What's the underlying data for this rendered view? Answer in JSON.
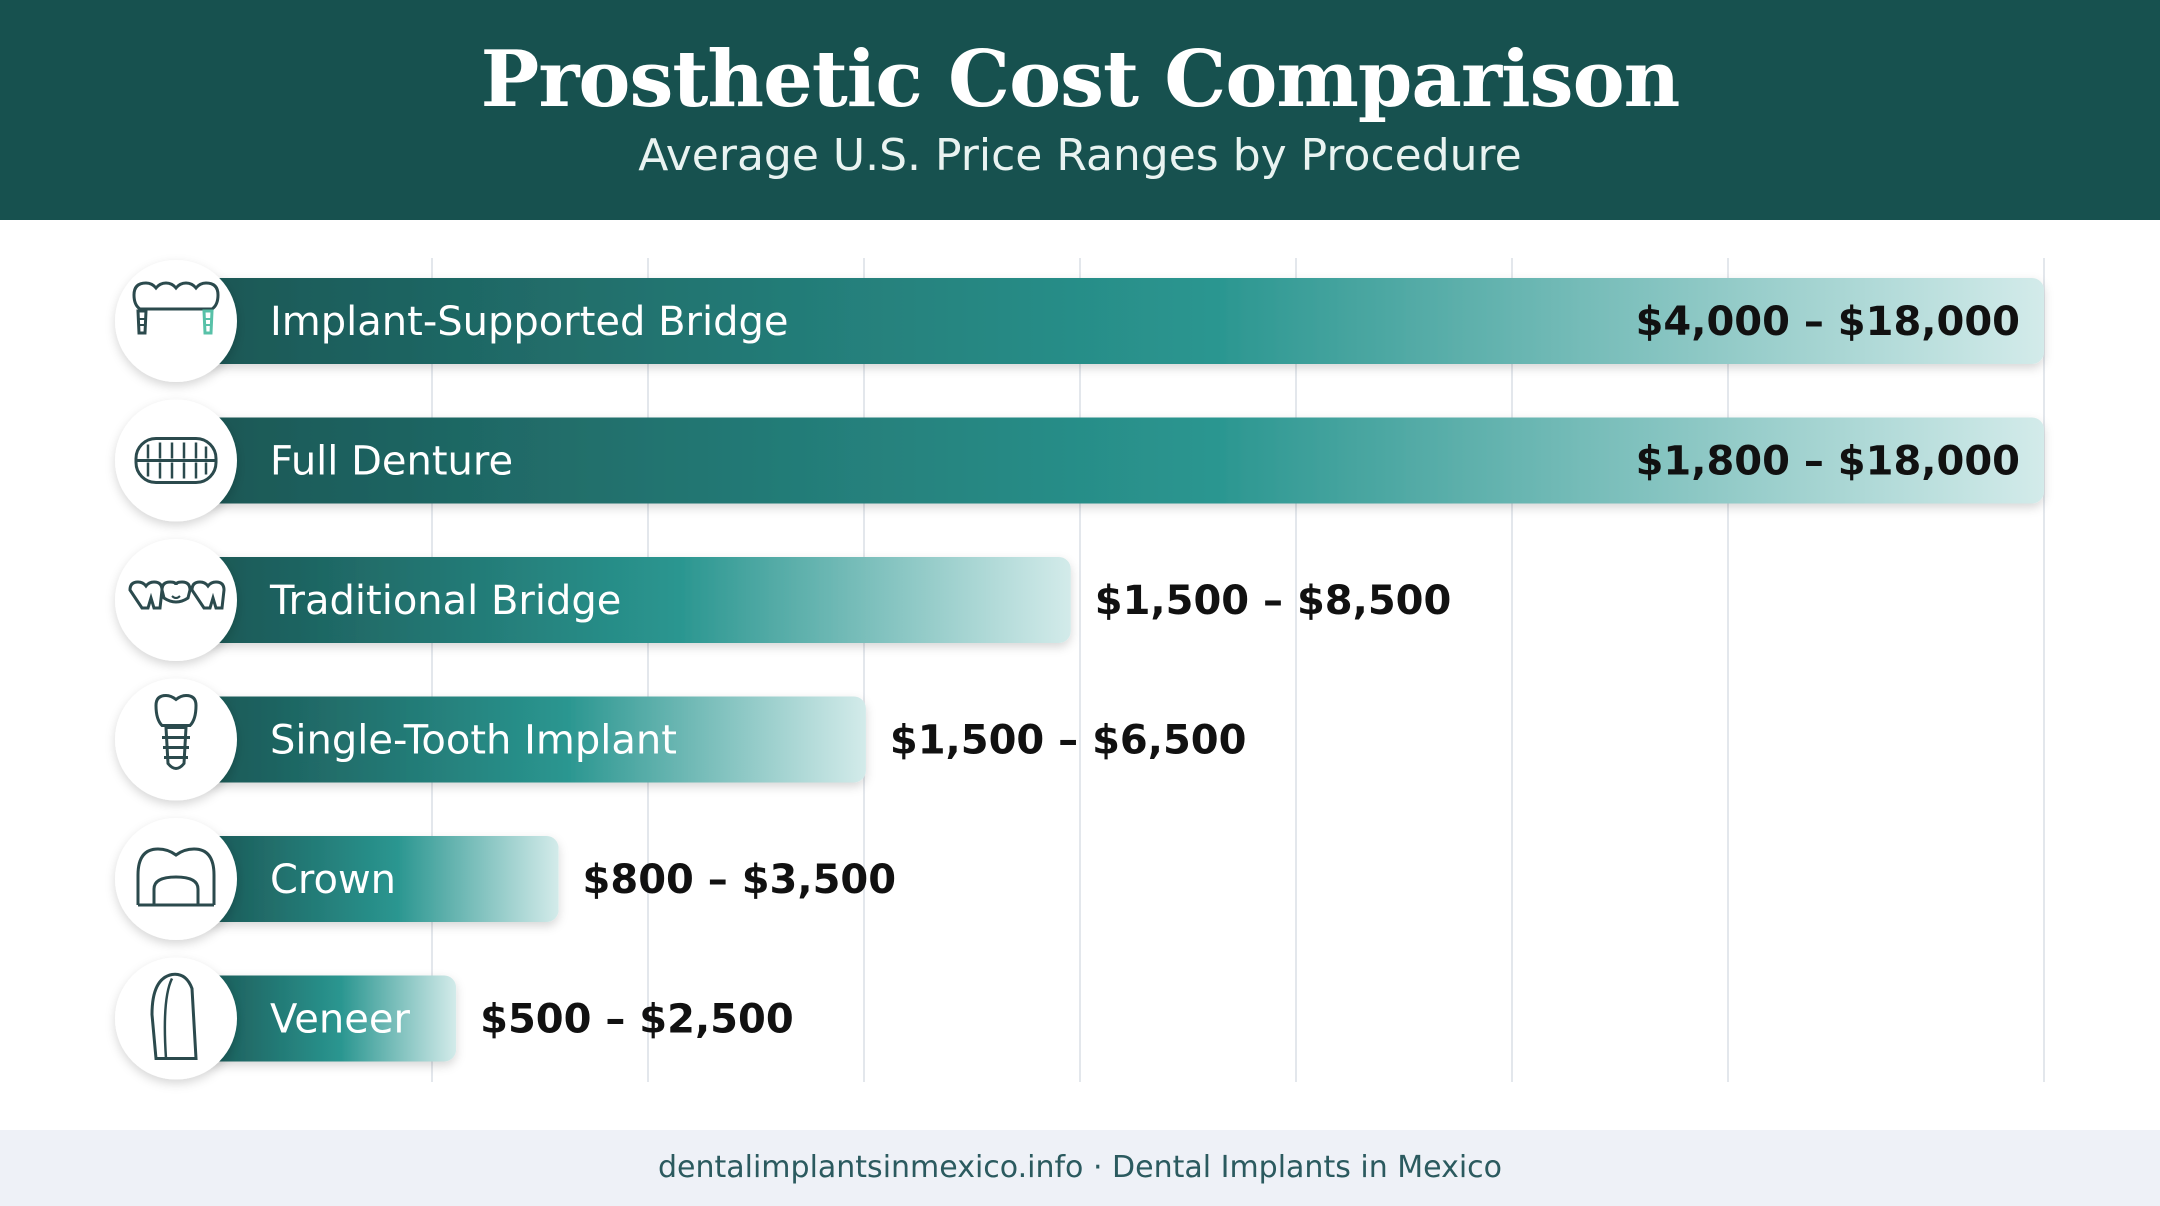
{
  "header": {
    "title": "Prosthetic Cost Comparison",
    "subtitle": "Average U.S. Price Ranges by Procedure"
  },
  "chart_data": {
    "type": "bar",
    "orientation": "horizontal",
    "title": "Prosthetic Cost Comparison",
    "subtitle": "Average U.S. Price Ranges by Procedure",
    "categories": [
      "Implant-Supported Bridge",
      "Full Denture",
      "Traditional Bridge",
      "Single-Tooth Implant",
      "Crown",
      "Veneer"
    ],
    "range_labels": [
      "$4,000 – $18,000",
      "$1,800 – $18,000",
      "$1,500 – $8,500",
      "$1,500 – $6,500",
      "$800 – $3,500",
      "$500 – $2,500"
    ],
    "low_values": [
      4000,
      1800,
      1500,
      1500,
      800,
      500
    ],
    "high_values": [
      18000,
      18000,
      8500,
      6500,
      3500,
      2500
    ],
    "icons": [
      "implant-bridge-icon",
      "denture-icon",
      "bridge-icon",
      "implant-icon",
      "crown-icon",
      "veneer-icon"
    ],
    "xlim": [
      0,
      18000
    ],
    "grid": true,
    "colors": {
      "bar_dark": "#1b5755",
      "bar_mid": "#2a9690",
      "bar_light": "#d3ebea",
      "label": "#ffffff",
      "value": "#111111",
      "grid": "#e3e7ec"
    }
  },
  "footer": {
    "text": "dentalimplantsinmexico.info · Dental Implants in Mexico"
  }
}
